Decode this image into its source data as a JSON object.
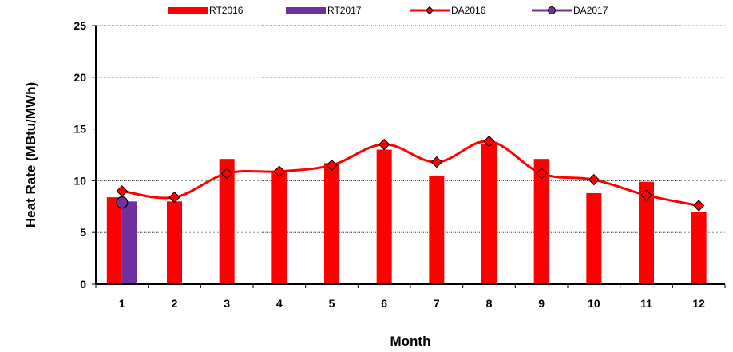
{
  "chart_data": {
    "type": "bar",
    "title": "",
    "xlabel": "Month",
    "ylabel": "Heat Rate (MBtu/MWh)",
    "ylim": [
      0,
      25
    ],
    "yticks": [
      0,
      5,
      10,
      15,
      20,
      25
    ],
    "categories": [
      "1",
      "2",
      "3",
      "4",
      "5",
      "6",
      "7",
      "8",
      "9",
      "10",
      "11",
      "12"
    ],
    "grid": "horizontal dotted",
    "legend_position": "top",
    "series": [
      {
        "name": "RT2016",
        "kind": "bar",
        "color": "#ff0000",
        "values": [
          8.4,
          8.0,
          12.1,
          10.9,
          11.7,
          13.0,
          10.5,
          13.6,
          12.1,
          8.8,
          9.9,
          7.0
        ]
      },
      {
        "name": "RT2017",
        "kind": "bar",
        "color": "#7030a0",
        "values": [
          8.0,
          null,
          null,
          null,
          null,
          null,
          null,
          null,
          null,
          null,
          null,
          null
        ]
      },
      {
        "name": "DA2016",
        "kind": "line",
        "color": "#ff0000",
        "marker": "diamond",
        "values": [
          9.0,
          8.4,
          10.7,
          10.9,
          11.5,
          13.5,
          11.8,
          13.8,
          10.7,
          10.1,
          8.6,
          7.6
        ]
      },
      {
        "name": "DA2017",
        "kind": "line",
        "color": "#7030a0",
        "marker": "circle",
        "values": [
          7.9,
          null,
          null,
          null,
          null,
          null,
          null,
          null,
          null,
          null,
          null,
          null
        ]
      }
    ]
  }
}
